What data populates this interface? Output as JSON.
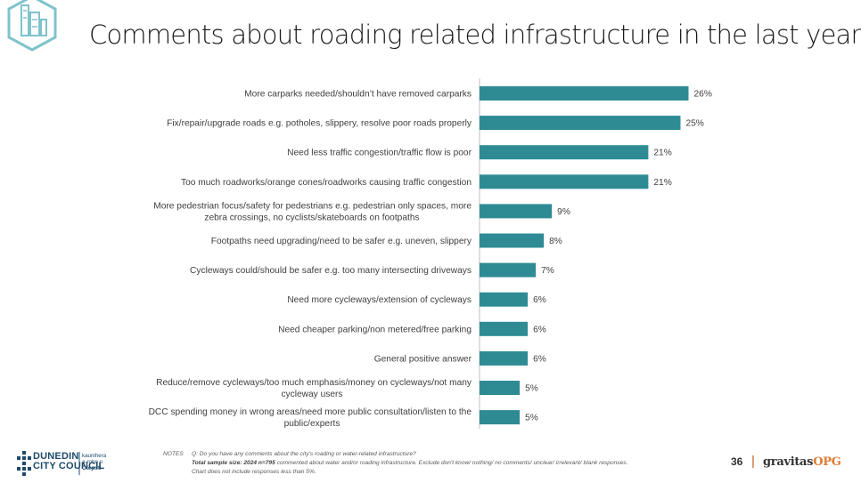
{
  "page": {
    "title": "Comments about roading related infrastructure in the last year",
    "page_number": "36",
    "separator": "|",
    "brand_main": "gravitas",
    "brand_accent": "OPG",
    "council_name_line1": "DUNEDIN",
    "council_name_line2": "CITY COUNCIL",
    "council_maori_1": "kaunihera",
    "council_maori_2": "a-rohe o",
    "council_maori_3": "Ōtepoti"
  },
  "notes": {
    "head": "NOTES",
    "question": "Q: Do you have any comments about the city's roading or water-related infrastructure?",
    "sample_bold": "Total sample size: 2024 n=795",
    "sample_rest": " commented about water and/or roading infrastructure. Exclude don't know/ nothing/ no comments/ unclear/ irrelevant/ blank responses.",
    "exclusion": "Chart does not include responses less than 5%."
  },
  "colors": {
    "bar": "#2e8b94",
    "text": "#404040",
    "accent": "#e07a30"
  },
  "chart_data": {
    "type": "bar",
    "orientation": "horizontal",
    "title": "Comments about roading related infrastructure in the last year",
    "xlim": [
      0,
      26
    ],
    "grid": false,
    "categories": [
      [
        "More carparks needed/shouldn’t have removed carparks"
      ],
      [
        "Fix/repair/upgrade roads e.g. potholes, slippery, resolve poor roads properly"
      ],
      [
        "Need less traffic congestion/traffic flow is poor"
      ],
      [
        "Too much roadworks/orange cones/roadworks causing traffic congestion"
      ],
      [
        "More pedestrian focus/safety for pedestrians e.g. pedestrian only spaces, more",
        "zebra crossings, no cyclists/skateboards on footpaths"
      ],
      [
        "Footpaths need upgrading/need to be safer e.g. uneven, slippery"
      ],
      [
        "Cycleways could/should be safer e.g. too many intersecting driveways"
      ],
      [
        "Need more cycleways/extension of cycleways"
      ],
      [
        "Need cheaper parking/non metered/free parking"
      ],
      [
        "General positive answer"
      ],
      [
        "Reduce/remove cycleways/too much emphasis/money on cycleways/not many",
        "cycleway users"
      ],
      [
        "DCC spending money in wrong areas/need more public consultation/listen to the",
        "public/experts"
      ]
    ],
    "values": [
      26,
      25,
      21,
      21,
      9,
      8,
      7,
      6,
      6,
      6,
      5,
      5
    ],
    "value_labels": [
      "26%",
      "25%",
      "21%",
      "21%",
      "9%",
      "8%",
      "7%",
      "6%",
      "6%",
      "6%",
      "5%",
      "5%"
    ]
  }
}
